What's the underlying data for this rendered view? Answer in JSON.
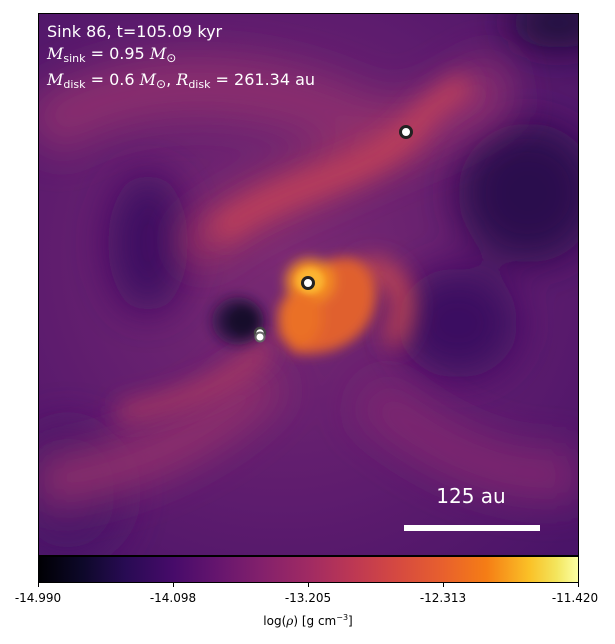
{
  "annotation": {
    "line1": "Sink 86, t=105.09 kyr",
    "sink_mass_symbol": "M",
    "sink_mass_sub": "sink",
    "sink_mass_value": " = 0.95 ",
    "disk_mass_symbol": "M",
    "disk_mass_sub": "disk",
    "disk_mass_value": " = 0.6 ",
    "disk_radius_symbol": "R",
    "disk_radius_sub": "disk",
    "disk_radius_value": " = 261.34 au",
    "solar_symbol": "M",
    "solar_sub": "⊙"
  },
  "scale_bar": {
    "label": "125 au"
  },
  "colorbar": {
    "colormap": "inferno",
    "ticks": [
      "-14.990",
      "-14.098",
      "-13.205",
      "-12.313",
      "-11.420"
    ],
    "title_prefix": "log(",
    "title_var": "ρ",
    "title_units": ") [g cm",
    "title_exp": "−3",
    "title_close": "]"
  },
  "sinks": [
    {
      "name": "sink-central"
    },
    {
      "name": "sink-upper-right"
    },
    {
      "name": "sink-lower-a"
    },
    {
      "name": "sink-lower-b"
    }
  ],
  "colors": {
    "background_gas": "#5a1a6e",
    "void": "#1e0a3c",
    "spiral_arm": "#c0405a",
    "core": "#f5a020",
    "sink_fill": "#ffffff",
    "sink_edge": "#222222"
  }
}
